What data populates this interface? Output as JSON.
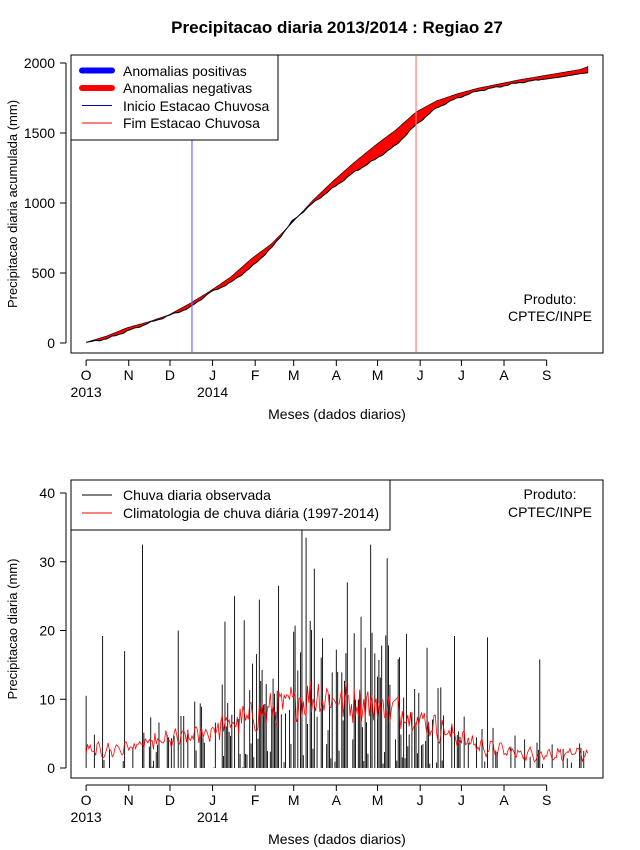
{
  "colors": {
    "positive": "#0000ff",
    "negative": "#ff0000",
    "onset": "#6b6bff",
    "end": "#ff7b7b",
    "observed": "#000000",
    "climatology": "#ff0000"
  },
  "chart_data": [
    {
      "type": "area",
      "title": "Precipitacao diaria 2013/2014 : Regiao 27",
      "ylabel": "Precipitacao diaria acumulada (mm)",
      "xlabel": "Meses (dados diarios)",
      "ylim": [
        0,
        2000
      ],
      "yticks": [
        0,
        500,
        1000,
        1500,
        2000
      ],
      "xlim_days": [
        -11,
        376
      ],
      "month_ticks": [
        {
          "label": "O",
          "day": 0
        },
        {
          "label": "N",
          "day": 31
        },
        {
          "label": "D",
          "day": 61
        },
        {
          "label": "J",
          "day": 92
        },
        {
          "label": "F",
          "day": 123
        },
        {
          "label": "M",
          "day": 151
        },
        {
          "label": "A",
          "day": 182
        },
        {
          "label": "M",
          "day": 212
        },
        {
          "label": "J",
          "day": 243
        },
        {
          "label": "J",
          "day": 273
        },
        {
          "label": "A",
          "day": 304
        },
        {
          "label": "S",
          "day": 335
        }
      ],
      "year_labels": [
        {
          "label": "2013",
          "day": 0
        },
        {
          "label": "2014",
          "day": 92
        }
      ],
      "legend": [
        "Anomalias positivas",
        "Anomalias negativas",
        "Inicio Estacao Chuvosa",
        "Fim Estacao Chuvosa"
      ],
      "legend_position": "top-left",
      "annotation": [
        "Produto:",
        "CPTEC/INPE"
      ],
      "onset_day": 77,
      "end_day": 240,
      "days": [
        0,
        15,
        30,
        45,
        60,
        75,
        90,
        105,
        120,
        135,
        150,
        165,
        180,
        195,
        210,
        225,
        240,
        255,
        270,
        285,
        300,
        315,
        330,
        345,
        360,
        365
      ],
      "observed_cumulative": [
        5,
        30,
        85,
        140,
        195,
        250,
        360,
        430,
        540,
        680,
        870,
        1000,
        1110,
        1220,
        1310,
        1410,
        1560,
        1680,
        1750,
        1800,
        1830,
        1860,
        1880,
        1900,
        1925,
        1930
      ],
      "climatology_cumulative": [
        5,
        50,
        110,
        150,
        200,
        280,
        370,
        470,
        600,
        710,
        860,
        1020,
        1160,
        1290,
        1410,
        1520,
        1650,
        1730,
        1780,
        1820,
        1850,
        1880,
        1905,
        1930,
        1955,
        1975
      ]
    },
    {
      "type": "bar",
      "ylabel": "Precipitacao diaria (mm)",
      "xlabel": "Meses (dados diarios)",
      "ylim": [
        0,
        40
      ],
      "yticks": [
        0,
        10,
        20,
        30,
        40
      ],
      "legend": [
        "Chuva diaria observada",
        "Climatologia de chuva diária (1997-2014)"
      ],
      "legend_position": "top-left",
      "annotation": [
        "Produto:",
        "CPTEC/INPE"
      ],
      "series": [
        {
          "name": "Chuva diaria observada",
          "style": "vertical bars, one per day",
          "peak_values": [
            10.5,
            19.2,
            17,
            32.5,
            20,
            21.3,
            25,
            21.5,
            24.5,
            26.5,
            34.9,
            33.5,
            29,
            27,
            22,
            32.5,
            30.5,
            19.5,
            17.5,
            19.2,
            19,
            15.8
          ]
        },
        {
          "name": "Climatologia de chuva diária (1997-2014)",
          "style": "line",
          "monthly_mean_values": [
            2.5,
            3.5,
            4.5,
            6.5,
            8.5,
            10.5,
            9.5,
            8.5,
            5.5,
            3,
            2,
            2
          ]
        }
      ]
    }
  ]
}
